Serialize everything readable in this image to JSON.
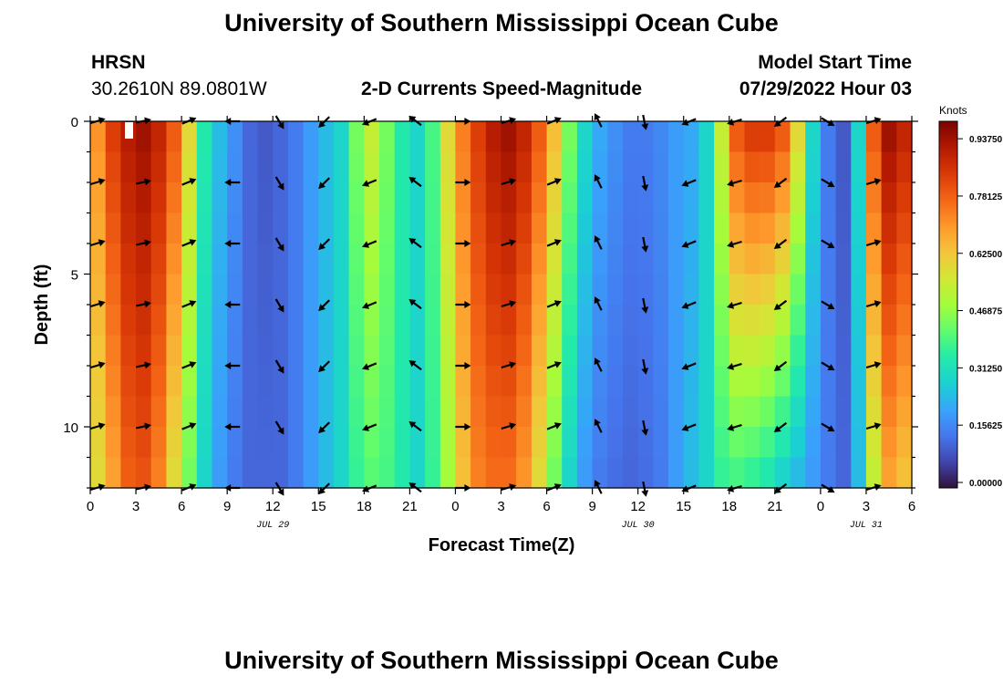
{
  "page_title": "University of Southern Mississippi Ocean Cube",
  "second_title": "University of Southern Mississippi Ocean Cube",
  "station": {
    "id": "HRSN",
    "coords": "30.2610N  89.0801W"
  },
  "plot_title": "2-D Currents Speed-Magnitude",
  "model": {
    "label": "Model Start Time",
    "time": "07/29/2022 Hour 03"
  },
  "chart_data": {
    "type": "heatmap",
    "title": "2-D Currents Speed-Magnitude",
    "xlabel": "Forecast Time(Z)",
    "ylabel": "Depth (ft)",
    "x_ticks": [
      "0",
      "3",
      "6",
      "9",
      "12",
      "15",
      "18",
      "21",
      "0",
      "3",
      "6",
      "9",
      "12",
      "15",
      "18",
      "21",
      "0",
      "3",
      "6"
    ],
    "date_labels": [
      {
        "label": "JUL 29",
        "at_hour": 12
      },
      {
        "label": "JUL 30",
        "at_hour": 36
      },
      {
        "label": "JUL 31",
        "at_hour": 51
      }
    ],
    "y_ticks": [
      0,
      5,
      10
    ],
    "xlim": [
      0,
      54
    ],
    "ylim": [
      0,
      12
    ],
    "depth_levels": [
      0,
      1,
      2,
      3,
      4,
      5,
      6,
      7,
      8,
      9,
      10,
      11,
      12
    ],
    "hours": [
      0,
      1,
      2,
      3,
      4,
      5,
      6,
      7,
      8,
      9,
      10,
      11,
      12,
      13,
      14,
      15,
      16,
      17,
      18,
      19,
      20,
      21,
      22,
      23,
      24,
      25,
      26,
      27,
      28,
      29,
      30,
      31,
      32,
      33,
      34,
      35,
      36,
      37,
      38,
      39,
      40,
      41,
      42,
      43,
      44,
      45,
      46,
      47,
      48,
      49,
      50,
      51,
      52,
      53,
      54
    ],
    "speed_profile_surface": [
      0.72,
      0.85,
      0.92,
      0.95,
      0.9,
      0.8,
      0.6,
      0.35,
      0.25,
      0.18,
      0.12,
      0.1,
      0.12,
      0.15,
      0.2,
      0.25,
      0.3,
      0.45,
      0.55,
      0.45,
      0.35,
      0.3,
      0.4,
      0.6,
      0.75,
      0.85,
      0.92,
      0.95,
      0.9,
      0.8,
      0.65,
      0.45,
      0.3,
      0.22,
      0.18,
      0.15,
      0.15,
      0.17,
      0.2,
      0.22,
      0.3,
      0.55,
      0.8,
      0.85,
      0.85,
      0.8,
      0.6,
      0.3,
      0.15,
      0.1,
      0.3,
      0.8,
      0.95,
      0.9,
      0.75
    ],
    "speed_profile_bottom": [
      0.6,
      0.7,
      0.8,
      0.82,
      0.75,
      0.6,
      0.45,
      0.3,
      0.2,
      0.15,
      0.12,
      0.12,
      0.12,
      0.15,
      0.2,
      0.25,
      0.3,
      0.38,
      0.42,
      0.4,
      0.35,
      0.3,
      0.38,
      0.5,
      0.65,
      0.75,
      0.78,
      0.78,
      0.72,
      0.6,
      0.45,
      0.3,
      0.2,
      0.15,
      0.13,
      0.12,
      0.13,
      0.15,
      0.2,
      0.25,
      0.3,
      0.38,
      0.4,
      0.38,
      0.35,
      0.3,
      0.25,
      0.2,
      0.15,
      0.12,
      0.25,
      0.55,
      0.7,
      0.65,
      0.55
    ],
    "arrow_rows_depth": [
      0,
      2,
      4,
      6,
      8,
      10,
      12
    ],
    "arrow_cols_hour": [
      0,
      3,
      6,
      9,
      12,
      15,
      18,
      21,
      24,
      27,
      30,
      33,
      36,
      39,
      42,
      45,
      48,
      51
    ],
    "colorbar": {
      "title": "Knots",
      "min": 0.0,
      "max": 1.0,
      "ticks": [
        "0.93750",
        "0.78125",
        "0.62500",
        "0.46875",
        "0.31250",
        "0.15625",
        "0.00000"
      ],
      "tick_values": [
        0.9375,
        0.78125,
        0.625,
        0.46875,
        0.3125,
        0.15625,
        0.0
      ]
    }
  }
}
